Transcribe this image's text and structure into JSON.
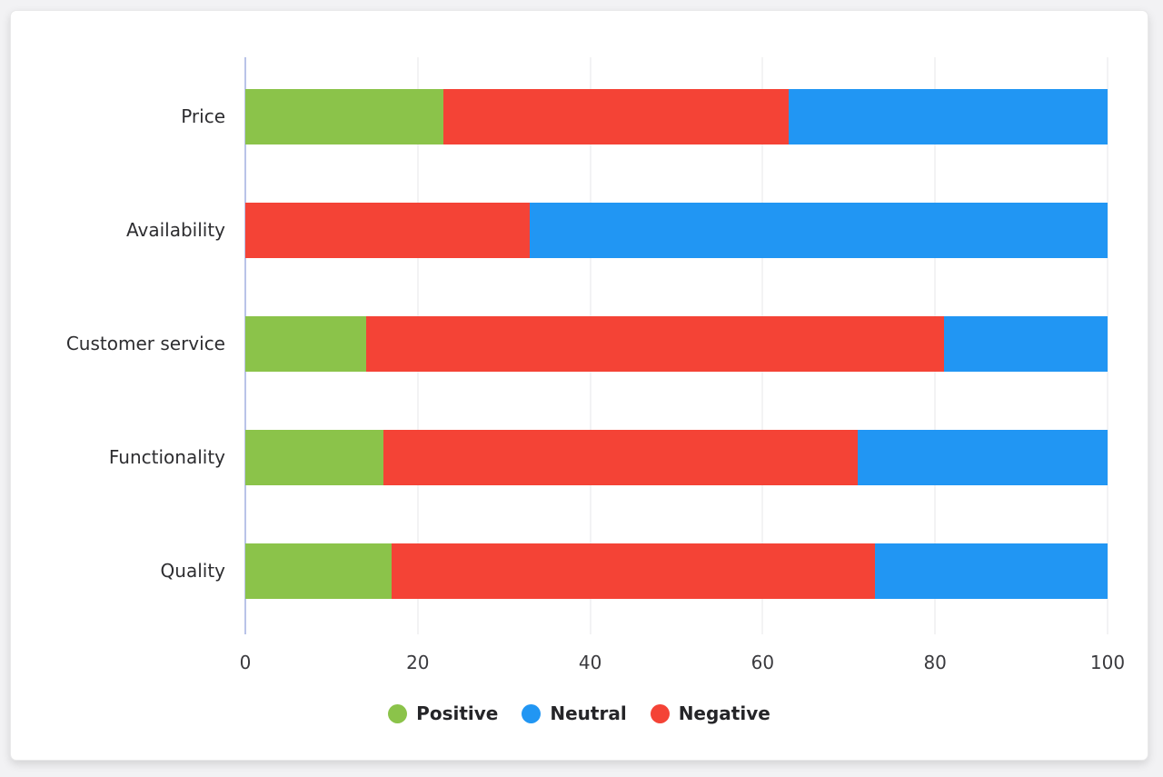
{
  "chart_data": {
    "type": "bar",
    "orientation": "horizontal",
    "stacked": true,
    "title": "",
    "xlabel": "",
    "ylabel": "",
    "categories": [
      "Price",
      "Availability",
      "Customer service",
      "Functionality",
      "Quality"
    ],
    "series": [
      {
        "name": "Positive",
        "color": "#8bc34a",
        "values": [
          23,
          0,
          14,
          16,
          17
        ]
      },
      {
        "name": "Neutral",
        "color": "#2196f3",
        "values": [
          37,
          67,
          19,
          29,
          27
        ]
      },
      {
        "name": "Negative",
        "color": "#f44336",
        "values": [
          40,
          33,
          67,
          55,
          56
        ]
      }
    ],
    "stack_order": [
      "Positive",
      "Negative",
      "Neutral"
    ],
    "xlim": [
      0,
      100
    ],
    "x_ticks": [
      0,
      20,
      40,
      60,
      80,
      100
    ],
    "grid": true,
    "legend_position": "bottom"
  },
  "legend": {
    "items": [
      {
        "label": "Positive",
        "color": "#8bc34a"
      },
      {
        "label": "Neutral",
        "color": "#2196f3"
      },
      {
        "label": "Negative",
        "color": "#f44336"
      }
    ]
  },
  "colors": {
    "page_background": "#f2f2f4",
    "card_background": "#ffffff",
    "gridline": "#e7e7e8",
    "axis_line": "#b9c3e8",
    "tick_text": "#3a3a3e",
    "label_text": "#2d2d30",
    "legend_text": "#252528"
  }
}
